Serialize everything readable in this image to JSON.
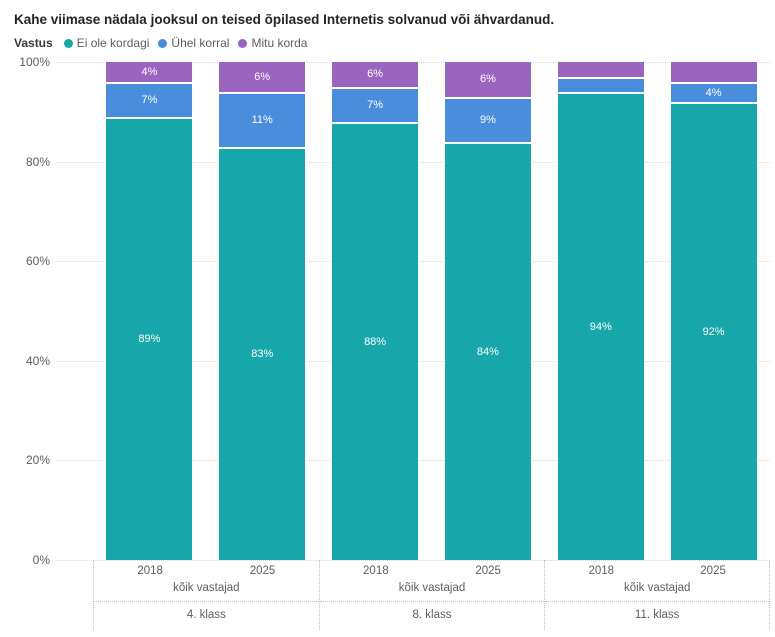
{
  "title": "Kahe viimase nädala jooksul on teised õpilased Internetis solvanud või ähvardanud.",
  "legend": {
    "title": "Vastus",
    "items": [
      {
        "label": "Ei ole kordagi",
        "color": "#17A6A9"
      },
      {
        "label": "Ühel korral",
        "color": "#4A8DDC"
      },
      {
        "label": "Mitu korda",
        "color": "#9B64BE"
      }
    ]
  },
  "y_axis": {
    "ticks": [
      "100%",
      "80%",
      "60%",
      "40%",
      "20%",
      "0%"
    ]
  },
  "chart_data": {
    "type": "bar",
    "subtype": "100-percent-stacked-column",
    "title": "Kahe viimase nädala jooksul on teised õpilased Internetis solvanud või ähvardanud.",
    "legend_title": "Vastus",
    "legend_position": "top",
    "grid": "horizontal-dotted",
    "ylim": [
      0,
      100
    ],
    "y_tick_step": 20,
    "series_names": [
      "Ei ole kordagi",
      "Ühel korral",
      "Mitu korda"
    ],
    "series_colors": [
      "#17A6A9",
      "#4A8DDC",
      "#9B64BE"
    ],
    "groups": [
      {
        "klass": "4. klass",
        "cohort": "kõik vastajad",
        "bars": [
          {
            "year": "2018",
            "values": [
              89,
              7,
              4
            ],
            "labels": [
              "89%",
              "7%",
              "4%"
            ]
          },
          {
            "year": "2025",
            "values": [
              83,
              11,
              6
            ],
            "labels": [
              "83%",
              "11%",
              "6%"
            ]
          }
        ]
      },
      {
        "klass": "8. klass",
        "cohort": "kõik vastajad",
        "bars": [
          {
            "year": "2018",
            "values": [
              88,
              7,
              6
            ],
            "labels": [
              "88%",
              "7%",
              "6%"
            ]
          },
          {
            "year": "2025",
            "values": [
              84,
              9,
              6
            ],
            "labels": [
              "84%",
              "9%",
              "6%"
            ]
          }
        ]
      },
      {
        "klass": "11. klass",
        "cohort": "kõik vastajad",
        "bars": [
          {
            "year": "2018",
            "values": [
              94,
              3,
              3
            ],
            "labels": [
              "94%",
              "",
              ""
            ]
          },
          {
            "year": "2025",
            "values": [
              92,
              4,
              3
            ],
            "labels": [
              "92%",
              "4%",
              ""
            ]
          }
        ]
      }
    ]
  }
}
